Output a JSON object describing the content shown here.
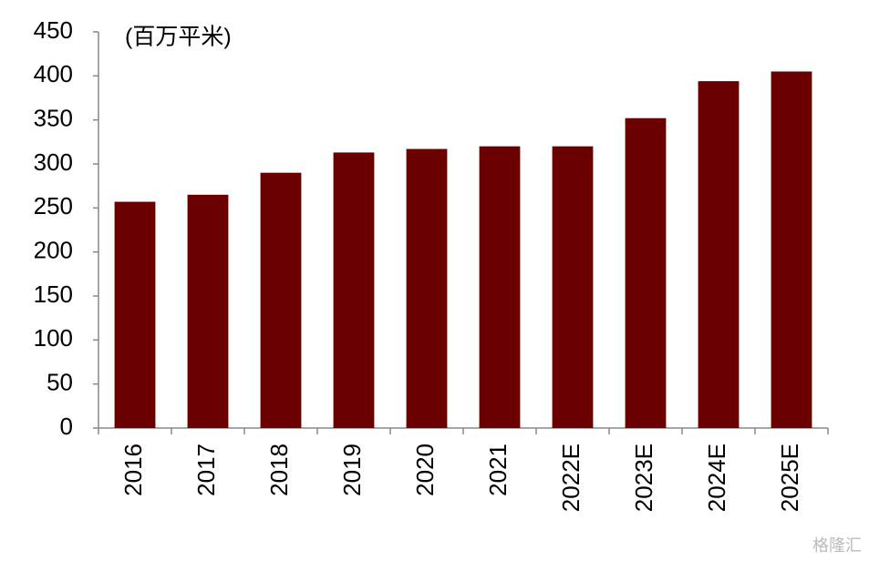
{
  "chart_data": {
    "type": "bar",
    "unit_label": "(百万平米)",
    "categories": [
      "2016",
      "2017",
      "2018",
      "2019",
      "2020",
      "2021",
      "2022E",
      "2023E",
      "2024E",
      "2025E"
    ],
    "values": [
      257,
      265,
      290,
      313,
      317,
      320,
      320,
      352,
      394,
      405
    ],
    "color": "#6b0000",
    "ylim": [
      0,
      450
    ],
    "yticks": [
      0,
      50,
      100,
      150,
      200,
      250,
      300,
      350,
      400,
      450
    ],
    "watermark": "格隆汇"
  }
}
